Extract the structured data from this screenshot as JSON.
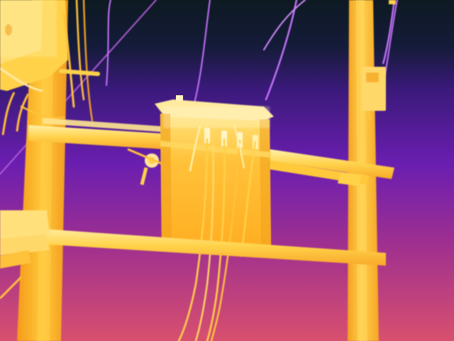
{
  "scene": {
    "palette": {
      "sky_top": "#0d1a22",
      "sky_mid": "#3a1a7a",
      "sky_violet": "#6a1eb0",
      "sky_magenta": "#a0308f",
      "sky_bottom": "#d8506e",
      "hot_white": "#fff6c8",
      "hot_yellow": "#ffd84a",
      "warm_orange": "#ffb21e",
      "mid_orange": "#f59a1a",
      "wire": "#c86cff"
    },
    "objects": [
      "left-utility-pole",
      "right-utility-pole",
      "pole-mounted-transformer",
      "upper-crossarm",
      "lower-crossarm",
      "left-junction-box",
      "right-meter-box",
      "overhead-wires",
      "transformer-leads"
    ]
  }
}
